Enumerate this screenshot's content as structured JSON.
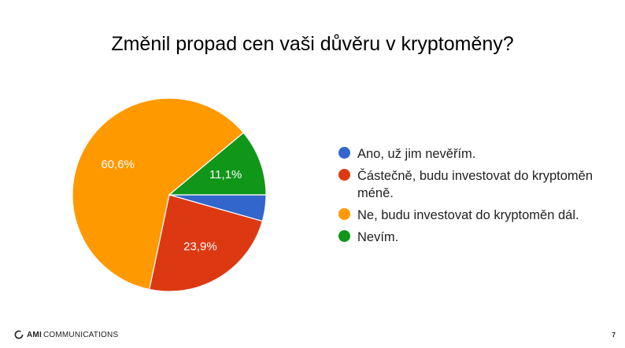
{
  "title": "Změnil propad cen vaši důvěru v kryptoměny?",
  "chart_data": {
    "type": "pie",
    "title": "Změnil propad cen vaši důvěru v kryptoměny?",
    "categories": [
      "Ano, už jim nevěřím.",
      "Částečně, budu investovat do kryptoměn méně.",
      "Ne, budu investovat do kryptoměn dál.",
      "Nevím."
    ],
    "values": [
      4.4,
      23.9,
      60.6,
      11.1
    ],
    "data_labels": [
      "",
      "23,9%",
      "60,6%",
      "11,1%"
    ],
    "colors": [
      "#3366cc",
      "#dc3912",
      "#ff9900",
      "#109618"
    ],
    "legend_position": "right"
  },
  "legend": {
    "items": [
      {
        "label": "Ano, už jim nevěřím.",
        "color": "#3366cc"
      },
      {
        "label": "Částečně, budu investovat do kryptoměn méně.",
        "color": "#dc3912"
      },
      {
        "label": "Ne, budu investovat do kryptoměn dál.",
        "color": "#ff9900"
      },
      {
        "label": "Nevím.",
        "color": "#109618"
      }
    ]
  },
  "footer": {
    "logo_strong": "AMI",
    "logo_rest": "COMMUNICATIONS",
    "page_number": "7"
  }
}
